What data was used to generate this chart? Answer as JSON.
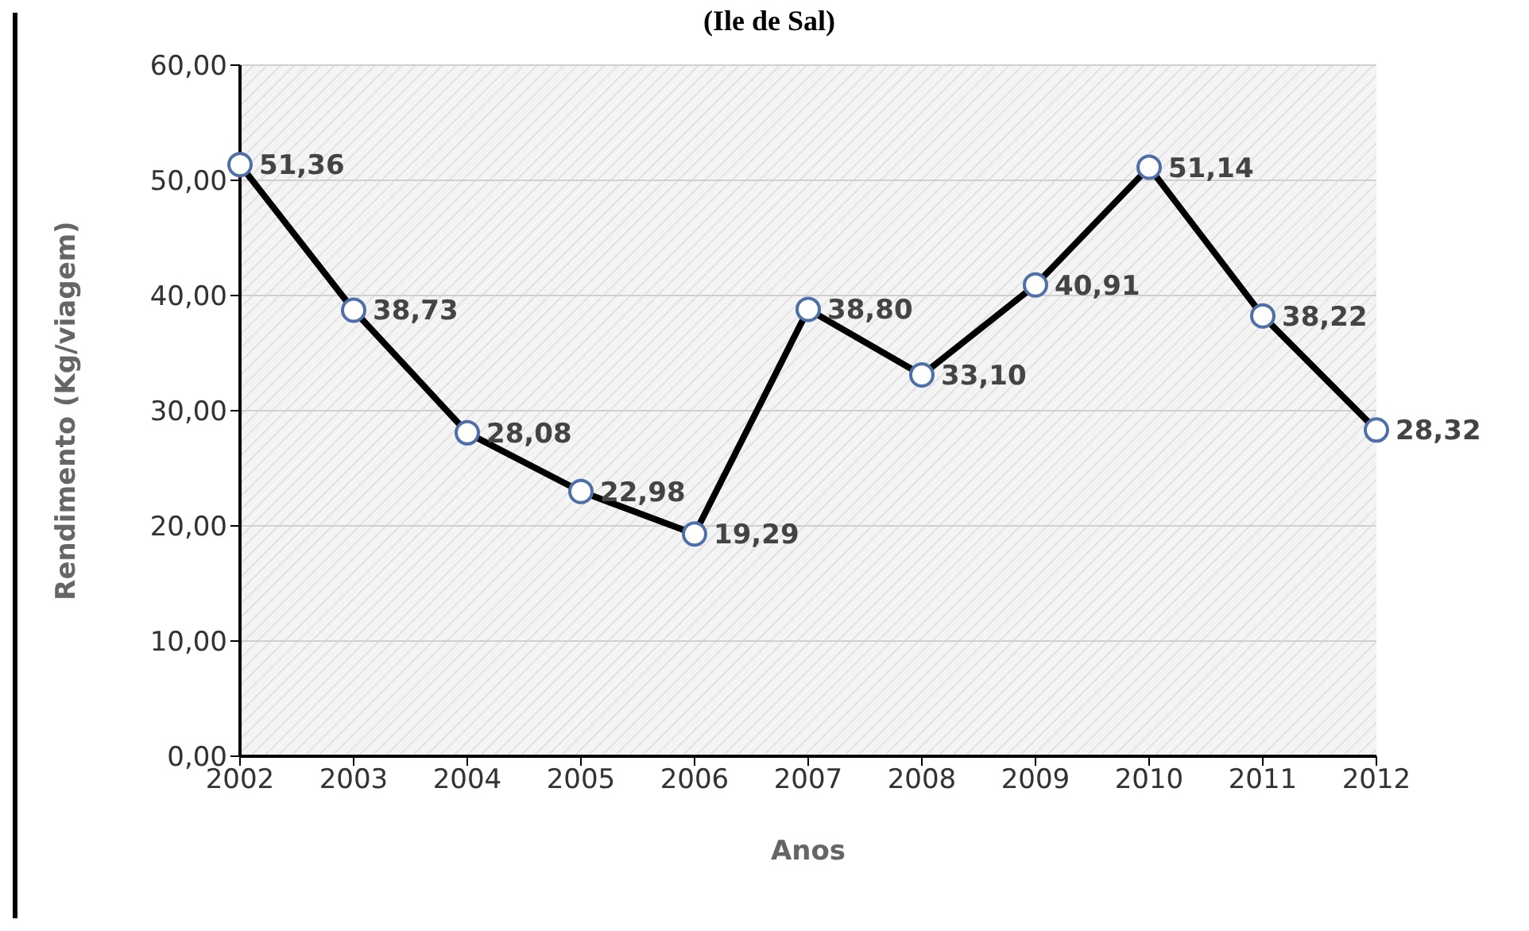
{
  "chart_data": {
    "type": "line",
    "title": "(Ile de Sal)",
    "xlabel": "Anos",
    "ylabel": "Rendimento (Kg/viagem)",
    "categories": [
      "2002",
      "2003",
      "2004",
      "2005",
      "2006",
      "2007",
      "2008",
      "2009",
      "2010",
      "2011",
      "2012"
    ],
    "series": [
      {
        "color": "#000000",
        "values": [
          51.36,
          38.73,
          28.08,
          22.98,
          19.29,
          38.8,
          33.1,
          40.91,
          51.14,
          38.22,
          28.32
        ],
        "value_labels": [
          "51,36",
          "38,73",
          "28,08",
          "22,98",
          "19,29",
          "38,80",
          "33,10",
          "40,91",
          "51,14",
          "38,22",
          "28,32"
        ]
      }
    ],
    "ylim": [
      0,
      60
    ],
    "yticks": [
      {
        "value": 0,
        "label": "0,00"
      },
      {
        "value": 10,
        "label": "10,00"
      },
      {
        "value": 20,
        "label": "20,00"
      },
      {
        "value": 30,
        "label": "30,00"
      },
      {
        "value": 40,
        "label": "40,00"
      },
      {
        "value": 50,
        "label": "50,00"
      },
      {
        "value": 60,
        "label": "60,00"
      }
    ],
    "grid": "y",
    "marker": "circle",
    "line_style": "solid"
  }
}
